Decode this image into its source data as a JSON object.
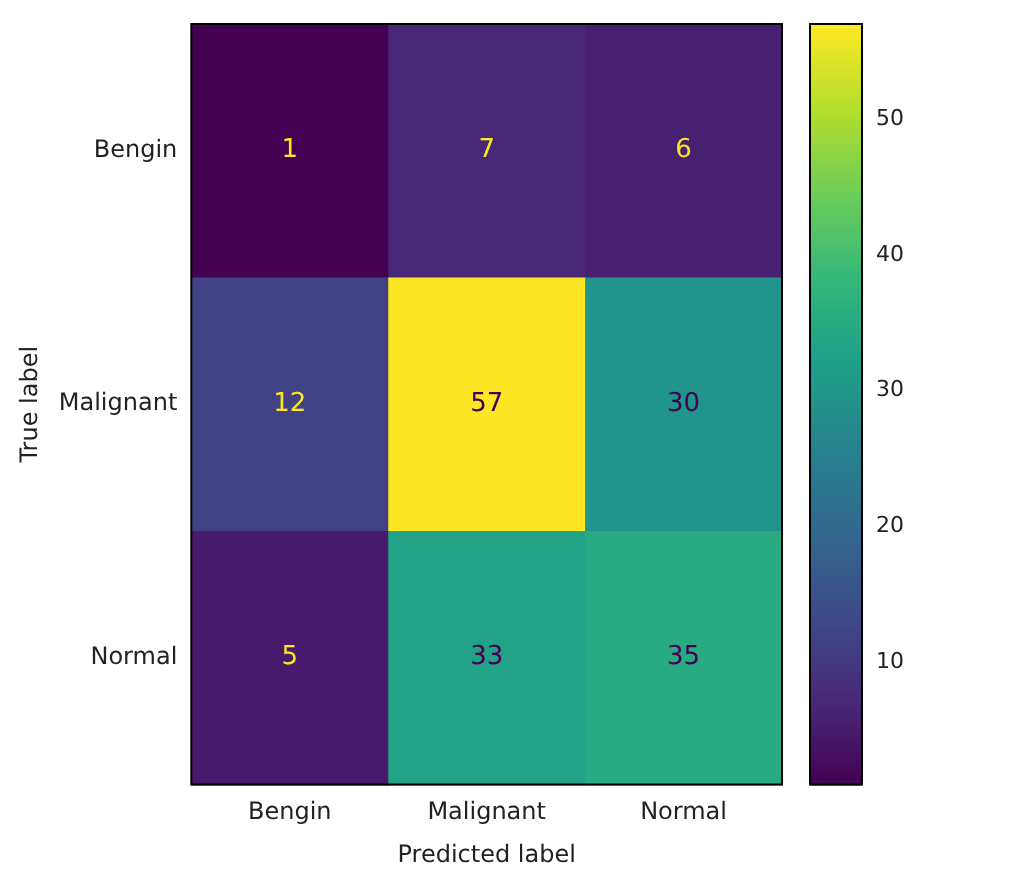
{
  "chart_data": {
    "type": "heatmap",
    "xlabel": "Predicted label",
    "ylabel": "True label",
    "categories": [
      "Bengin",
      "Malignant",
      "Normal"
    ],
    "y_categories": [
      "Bengin",
      "Malignant",
      "Normal"
    ],
    "cells": [
      [
        1,
        7,
        6
      ],
      [
        12,
        57,
        30
      ],
      [
        5,
        33,
        35
      ]
    ],
    "clim": [
      1,
      57
    ],
    "cticks": [
      10,
      20,
      30,
      40,
      50
    ],
    "data_labels": true
  }
}
